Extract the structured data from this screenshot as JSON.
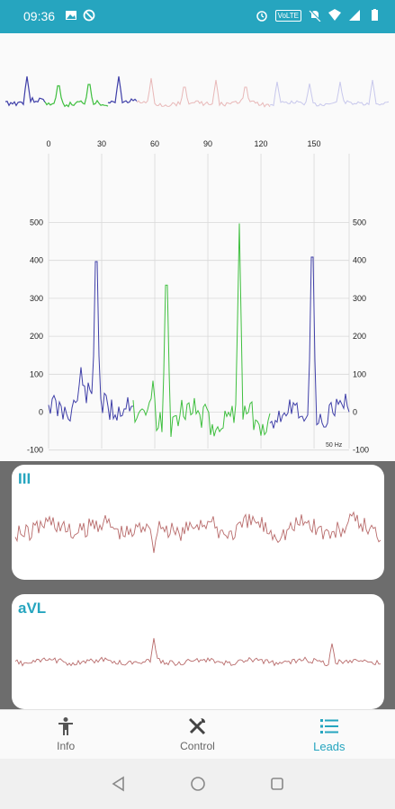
{
  "status_bar": {
    "time": "09:36",
    "volte_label": "VoLTE",
    "icons_left": [
      "image-icon",
      "sync-off-icon"
    ],
    "icons_right": [
      "alarm-icon",
      "volte-badge",
      "mute-icon",
      "wifi-icon",
      "signal-icon",
      "battery-icon"
    ]
  },
  "chart": {
    "top_ticks": [
      "0",
      "30",
      "60",
      "90",
      "120",
      "150"
    ],
    "y_ticks": [
      "500",
      "400",
      "300",
      "200",
      "100",
      "0",
      "-100"
    ],
    "filter_label": "50 Hz"
  },
  "leads": [
    {
      "name": "III",
      "color": "#b86b6b"
    },
    {
      "name": "aVL",
      "color": "#b86b6b"
    }
  ],
  "nav": {
    "items": [
      {
        "label": "Info",
        "icon": "person-icon",
        "active": false
      },
      {
        "label": "Control",
        "icon": "tools-icon",
        "active": false
      },
      {
        "label": "Leads",
        "icon": "list-icon",
        "active": true
      }
    ]
  },
  "colors": {
    "accent": "#26a5bf",
    "blue_trace": "#3f3fa8",
    "green_trace": "#3fbf3f",
    "faded_red": "#e8b8b8",
    "faded_blue": "#c8c8ec"
  }
}
